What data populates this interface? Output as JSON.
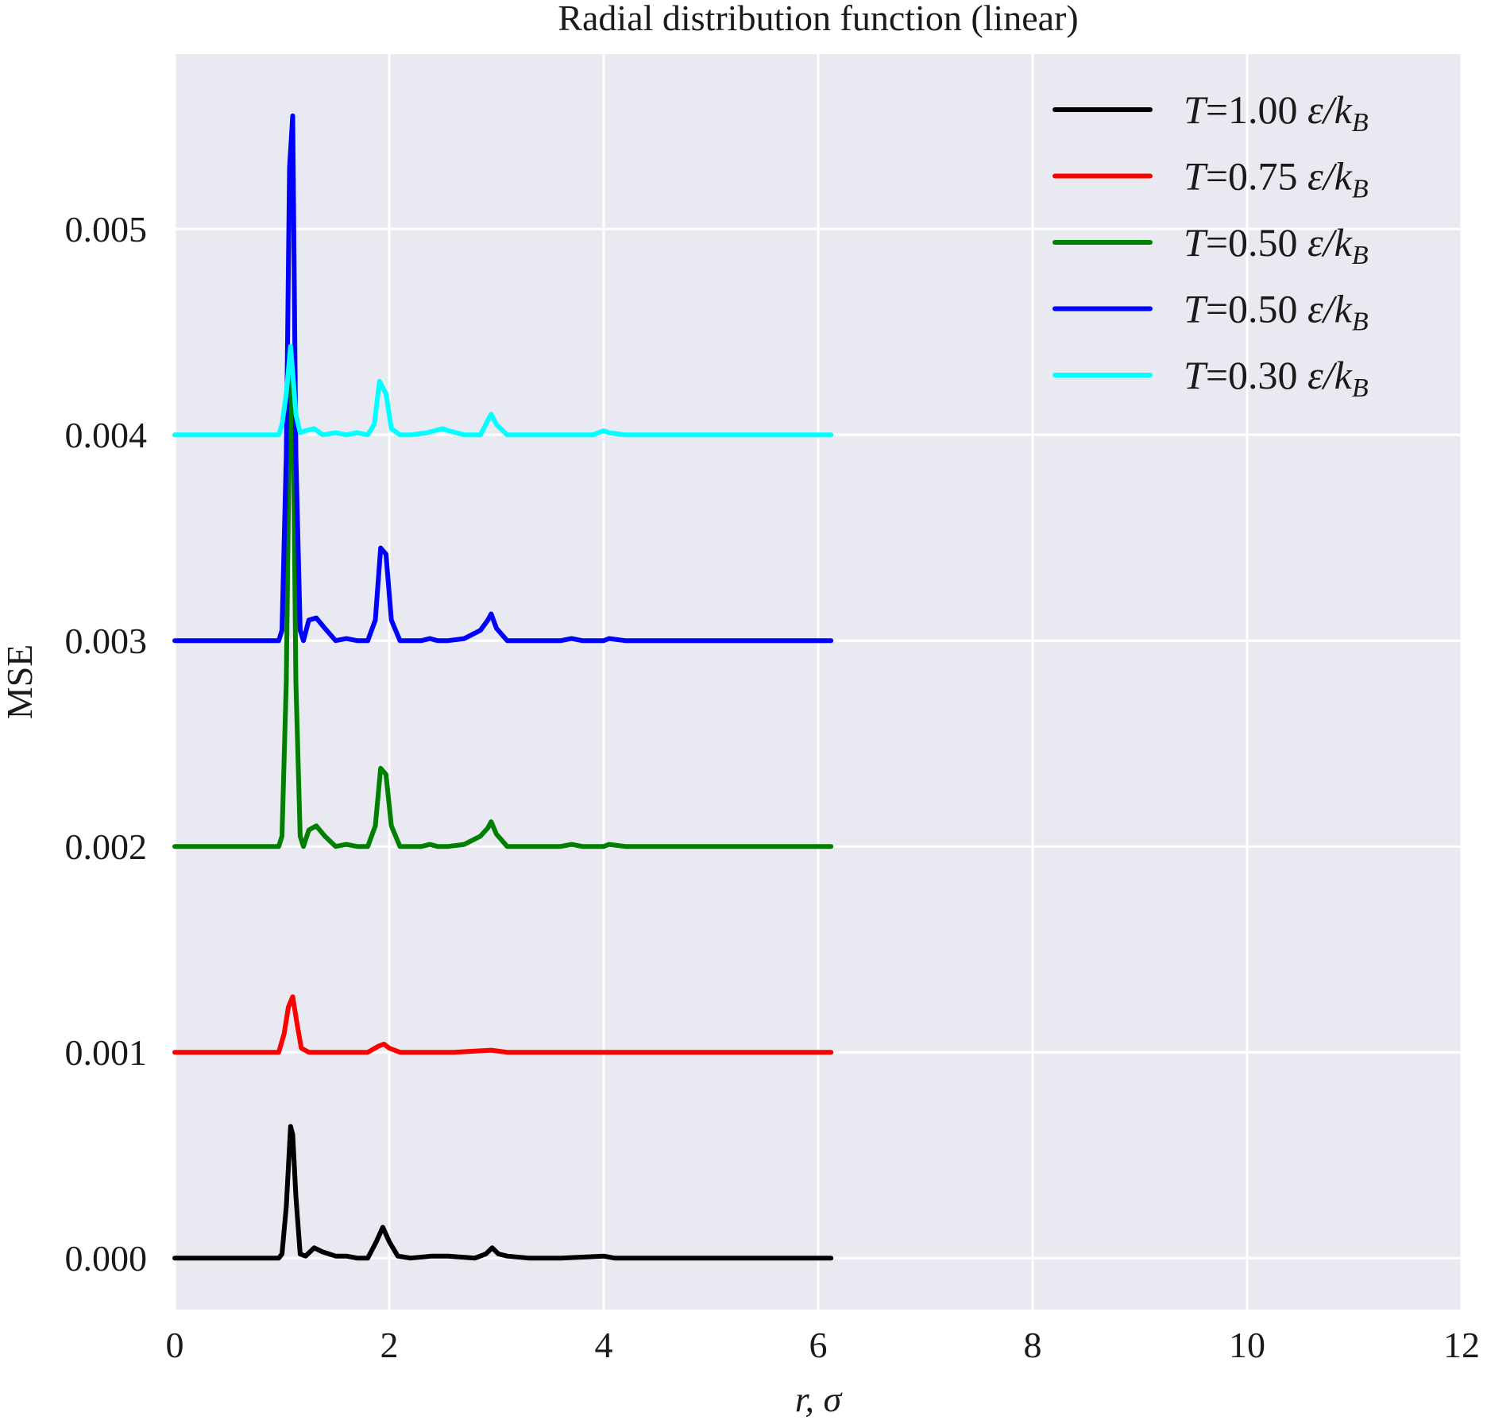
{
  "chart_data": {
    "type": "line",
    "title": "Radial distribution function (linear)",
    "xlabel": "r, σ",
    "ylabel": "MSE",
    "xlim": [
      0,
      12
    ],
    "ylim": [
      -0.00025,
      0.00585
    ],
    "xticks": [
      0,
      2,
      4,
      6,
      8,
      10,
      12
    ],
    "xtick_labels": [
      "0",
      "2",
      "4",
      "6",
      "8",
      "10",
      "12"
    ],
    "yticks": [
      0,
      0.001,
      0.002,
      0.003,
      0.004,
      0.005
    ],
    "ytick_labels": [
      "0.000",
      "0.001",
      "0.002",
      "0.003",
      "0.004",
      "0.005"
    ],
    "grid": true,
    "legend_position": "top-right",
    "background_color": "#e9e9f1",
    "series": [
      {
        "name": "T = 1.00 ε/kB",
        "legend": {
          "prefix": "T",
          "value": "1.00",
          "unit_main": "ε/k",
          "unit_sub": "B"
        },
        "color": "#000000",
        "x": [
          0,
          0.9,
          0.97,
          1.0,
          1.04,
          1.08,
          1.1,
          1.13,
          1.17,
          1.22,
          1.3,
          1.38,
          1.5,
          1.6,
          1.7,
          1.8,
          1.88,
          1.94,
          2.0,
          2.08,
          2.2,
          2.4,
          2.55,
          2.8,
          2.9,
          2.96,
          3.02,
          3.1,
          3.3,
          3.6,
          4.0,
          4.1,
          4.5,
          5.0,
          6.12
        ],
        "y": [
          0,
          0,
          0,
          2e-05,
          0.00025,
          0.00064,
          0.0006,
          0.0003,
          2e-05,
          1e-05,
          5e-05,
          3e-05,
          1e-05,
          1e-05,
          0,
          0,
          8e-05,
          0.00015,
          8e-05,
          1e-05,
          0,
          1e-05,
          1e-05,
          0,
          2e-05,
          5e-05,
          2e-05,
          1e-05,
          0,
          0,
          1e-05,
          0,
          0,
          0,
          0
        ]
      },
      {
        "name": "T = 0.75 ε/kB",
        "legend": {
          "prefix": "T",
          "value": "0.75",
          "unit_main": "ε/k",
          "unit_sub": "B"
        },
        "color": "#ff0000",
        "x": [
          0,
          0.9,
          0.97,
          1.02,
          1.06,
          1.1,
          1.14,
          1.18,
          1.25,
          1.5,
          1.8,
          1.9,
          1.95,
          2.0,
          2.1,
          2.6,
          2.95,
          3.1,
          4.0,
          5.0,
          6.12
        ],
        "y": [
          0.001,
          0.001,
          0.001,
          0.00109,
          0.00122,
          0.00127,
          0.00114,
          0.00102,
          0.001,
          0.001,
          0.001,
          0.00103,
          0.00104,
          0.00102,
          0.001,
          0.001,
          0.00101,
          0.001,
          0.001,
          0.001,
          0.001
        ]
      },
      {
        "name": "T = 0.50 ε/kB",
        "legend": {
          "prefix": "T",
          "value": "0.50",
          "unit_main": "ε/k",
          "unit_sub": "B"
        },
        "color": "#008000",
        "x": [
          0,
          0.9,
          0.97,
          1.0,
          1.04,
          1.07,
          1.1,
          1.13,
          1.17,
          1.2,
          1.25,
          1.32,
          1.4,
          1.5,
          1.6,
          1.7,
          1.8,
          1.87,
          1.92,
          1.97,
          2.02,
          2.1,
          2.2,
          2.3,
          2.38,
          2.45,
          2.55,
          2.7,
          2.85,
          2.92,
          2.95,
          3.0,
          3.1,
          3.3,
          3.6,
          3.7,
          3.8,
          4.0,
          4.05,
          4.2,
          4.6,
          5.0,
          6.12
        ],
        "y": [
          0.002,
          0.002,
          0.002,
          0.00205,
          0.0028,
          0.0041,
          0.0043,
          0.0028,
          0.00205,
          0.002,
          0.00208,
          0.0021,
          0.00205,
          0.002,
          0.00201,
          0.002,
          0.002,
          0.0021,
          0.00238,
          0.00235,
          0.0021,
          0.002,
          0.002,
          0.002,
          0.00201,
          0.002,
          0.002,
          0.00201,
          0.00205,
          0.00209,
          0.00212,
          0.00206,
          0.002,
          0.002,
          0.002,
          0.00201,
          0.002,
          0.002,
          0.00201,
          0.002,
          0.002,
          0.002,
          0.002
        ]
      },
      {
        "name": "T = 0.50 ε/kB",
        "legend": {
          "prefix": "T",
          "value": "0.50",
          "unit_main": "ε/k",
          "unit_sub": "B"
        },
        "color": "#0000ff",
        "x": [
          0,
          0.9,
          0.97,
          1.0,
          1.04,
          1.07,
          1.1,
          1.13,
          1.17,
          1.2,
          1.25,
          1.32,
          1.4,
          1.5,
          1.6,
          1.7,
          1.8,
          1.87,
          1.92,
          1.97,
          2.02,
          2.1,
          2.2,
          2.3,
          2.38,
          2.45,
          2.55,
          2.7,
          2.85,
          2.92,
          2.95,
          3.0,
          3.1,
          3.3,
          3.6,
          3.7,
          3.8,
          4.0,
          4.05,
          4.2,
          4.6,
          5.0,
          6.12
        ],
        "y": [
          0.003,
          0.003,
          0.003,
          0.00305,
          0.0039,
          0.0053,
          0.00555,
          0.0039,
          0.00305,
          0.003,
          0.0031,
          0.00311,
          0.00306,
          0.003,
          0.00301,
          0.003,
          0.003,
          0.0031,
          0.00345,
          0.00342,
          0.0031,
          0.003,
          0.003,
          0.003,
          0.00301,
          0.003,
          0.003,
          0.00301,
          0.00305,
          0.0031,
          0.00313,
          0.00306,
          0.003,
          0.003,
          0.003,
          0.00301,
          0.003,
          0.003,
          0.00301,
          0.003,
          0.003,
          0.003,
          0.003
        ]
      },
      {
        "name": "T = 0.30 ε/kB",
        "legend": {
          "prefix": "T",
          "value": "0.30",
          "unit_main": "ε/k",
          "unit_sub": "B"
        },
        "color": "#00ffff",
        "x": [
          0,
          0.9,
          0.97,
          1.0,
          1.04,
          1.08,
          1.1,
          1.13,
          1.17,
          1.22,
          1.3,
          1.38,
          1.5,
          1.6,
          1.7,
          1.8,
          1.86,
          1.91,
          1.97,
          2.02,
          2.1,
          2.2,
          2.35,
          2.5,
          2.55,
          2.7,
          2.85,
          2.92,
          2.95,
          3.0,
          3.1,
          3.3,
          3.6,
          3.9,
          4.0,
          4.05,
          4.2,
          4.6,
          5.0,
          6.12
        ],
        "y": [
          0.004,
          0.004,
          0.004,
          0.00405,
          0.0042,
          0.00443,
          0.0043,
          0.0041,
          0.00401,
          0.00402,
          0.00403,
          0.004,
          0.00401,
          0.004,
          0.00401,
          0.004,
          0.00405,
          0.00426,
          0.0042,
          0.00403,
          0.004,
          0.004,
          0.00401,
          0.00403,
          0.00402,
          0.004,
          0.004,
          0.00407,
          0.0041,
          0.00405,
          0.004,
          0.004,
          0.004,
          0.004,
          0.00402,
          0.00401,
          0.004,
          0.004,
          0.004,
          0.004
        ]
      }
    ]
  }
}
